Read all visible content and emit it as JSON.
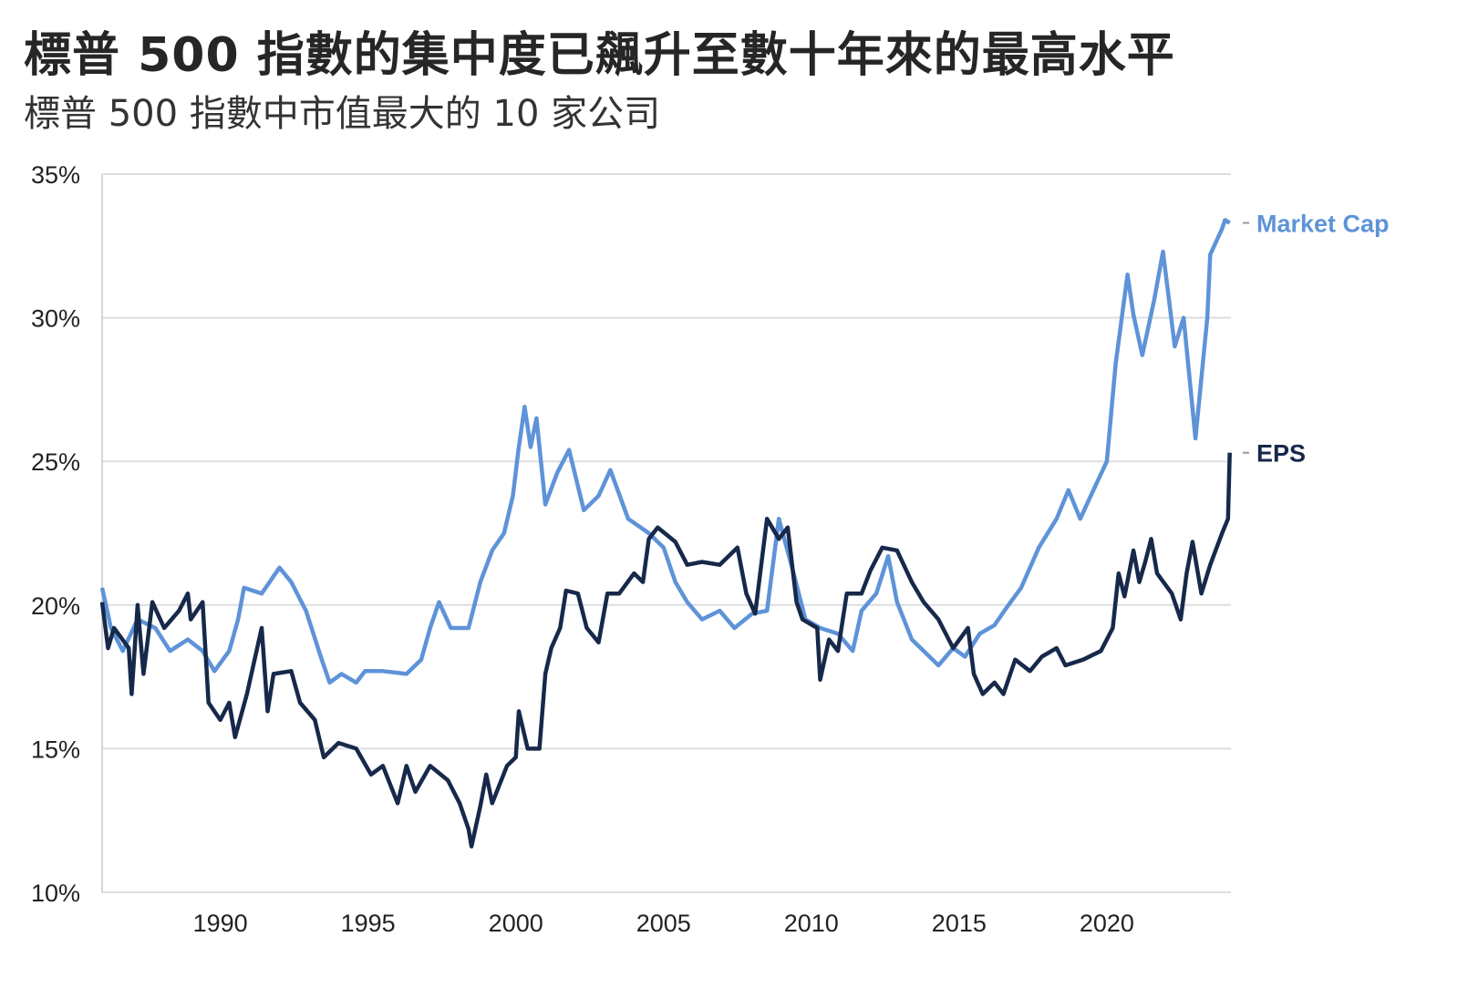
{
  "title": "標普 500 指數的集中度已飆升至數十年來的最高水平",
  "subtitle": "標普 500 指數中市值最大的 10 家公司",
  "chart_data": {
    "type": "line",
    "title": "標普 500 指數的集中度已飆升至數十年來的最高水平",
    "subtitle": "標普 500 指數中市值最大的 10 家公司",
    "xlabel": "",
    "ylabel": "",
    "xlim": [
      1986.0,
      2024.2
    ],
    "ylim": [
      10,
      35
    ],
    "x_ticks": [
      1990,
      1995,
      2000,
      2005,
      2010,
      2015,
      2020
    ],
    "x_tick_labels": [
      "1990",
      "1995",
      "2000",
      "2005",
      "2010",
      "2015",
      "2020"
    ],
    "y_ticks": [
      35,
      30,
      25,
      20,
      15,
      10
    ],
    "y_tick_labels": [
      "35%",
      "30%",
      "25%",
      "20%",
      "15%",
      "10%"
    ],
    "grid": "horizontal",
    "legend": "direct labels at line ends (right)",
    "series": [
      {
        "name": "Market Cap",
        "color": "#5e93d8",
        "x": [
          1986.0,
          1986.3,
          1986.7,
          1987.2,
          1987.8,
          1988.3,
          1988.9,
          1989.4,
          1989.8,
          1990.3,
          1990.6,
          1990.8,
          1991.4,
          1992.0,
          1992.4,
          1992.9,
          1993.4,
          1993.7,
          1994.1,
          1994.6,
          1994.9,
          1995.5,
          1996.3,
          1996.8,
          1997.1,
          1997.4,
          1997.8,
          1998.4,
          1998.8,
          1999.2,
          1999.6,
          1999.9,
          2000.1,
          2000.3,
          2000.5,
          2000.7,
          2001.0,
          2001.4,
          2001.8,
          2002.3,
          2002.8,
          2003.2,
          2003.8,
          2004.5,
          2005.0,
          2005.4,
          2005.8,
          2006.3,
          2006.9,
          2007.4,
          2008.0,
          2008.5,
          2008.7,
          2008.9,
          2009.4,
          2009.8,
          2010.3,
          2010.9,
          2011.4,
          2011.7,
          2012.2,
          2012.6,
          2012.9,
          2013.4,
          2013.8,
          2014.3,
          2014.8,
          2015.2,
          2015.7,
          2016.2,
          2016.6,
          2017.1,
          2017.7,
          2018.3,
          2018.7,
          2019.1,
          2019.5,
          2020.0,
          2020.3,
          2020.7,
          2020.9,
          2021.2,
          2021.6,
          2021.9,
          2022.3,
          2022.6,
          2023.0,
          2023.4,
          2023.5,
          2023.9,
          2024.0,
          2024.16
        ],
        "values": [
          20.6,
          19.2,
          18.4,
          19.5,
          19.2,
          18.4,
          18.8,
          18.4,
          17.7,
          18.4,
          19.5,
          20.6,
          20.4,
          21.3,
          20.8,
          19.8,
          18.2,
          17.3,
          17.6,
          17.3,
          17.7,
          17.7,
          17.6,
          18.1,
          19.2,
          20.1,
          19.2,
          19.2,
          20.8,
          21.9,
          22.5,
          23.8,
          25.5,
          26.9,
          25.5,
          26.5,
          23.5,
          24.6,
          25.4,
          23.3,
          23.8,
          24.7,
          23.0,
          22.5,
          22.0,
          20.8,
          20.1,
          19.5,
          19.8,
          19.2,
          19.7,
          19.8,
          21.4,
          23.0,
          21.1,
          19.5,
          19.2,
          19.0,
          18.4,
          19.8,
          20.4,
          21.7,
          20.1,
          18.8,
          18.4,
          17.9,
          18.5,
          18.2,
          19.0,
          19.3,
          19.9,
          20.6,
          22.0,
          23.0,
          24.0,
          23.0,
          23.9,
          25.0,
          28.4,
          31.5,
          30.1,
          28.7,
          30.6,
          32.3,
          29.0,
          30.0,
          25.8,
          30.0,
          32.2,
          33.1,
          33.4,
          33.3
        ]
      },
      {
        "name": "EPS",
        "color": "#17294a",
        "x": [
          1986.0,
          1986.2,
          1986.4,
          1986.9,
          1987.0,
          1987.2,
          1987.4,
          1987.7,
          1988.1,
          1988.6,
          1988.9,
          1989.0,
          1989.4,
          1989.6,
          1990.0,
          1990.3,
          1990.5,
          1990.9,
          1991.4,
          1991.6,
          1991.8,
          1992.4,
          1992.7,
          1993.2,
          1993.5,
          1994.0,
          1994.6,
          1995.1,
          1995.5,
          1996.0,
          1996.3,
          1996.6,
          1997.1,
          1997.7,
          1998.1,
          1998.4,
          1998.5,
          1998.8,
          1999.0,
          1999.2,
          1999.7,
          2000.0,
          2000.1,
          2000.4,
          2000.8,
          2001.0,
          2001.2,
          2001.5,
          2001.7,
          2002.1,
          2002.4,
          2002.8,
          2003.1,
          2003.5,
          2004.0,
          2004.3,
          2004.5,
          2004.8,
          2005.4,
          2005.8,
          2006.3,
          2006.9,
          2007.5,
          2007.8,
          2008.1,
          2008.5,
          2008.9,
          2009.2,
          2009.5,
          2009.7,
          2010.2,
          2010.3,
          2010.6,
          2010.9,
          2011.2,
          2011.7,
          2012.0,
          2012.4,
          2012.9,
          2013.4,
          2013.8,
          2014.3,
          2014.8,
          2015.3,
          2015.5,
          2015.8,
          2016.2,
          2016.5,
          2016.9,
          2017.4,
          2017.8,
          2018.3,
          2018.6,
          2019.2,
          2019.8,
          2020.2,
          2020.4,
          2020.6,
          2020.9,
          2021.1,
          2021.3,
          2021.5,
          2021.7,
          2022.2,
          2022.5,
          2022.7,
          2022.9,
          2023.2,
          2023.5,
          2023.9,
          2024.1,
          2024.16
        ],
        "values": [
          20.1,
          18.5,
          19.2,
          18.5,
          16.9,
          20.0,
          17.6,
          20.1,
          19.2,
          19.8,
          20.4,
          19.5,
          20.1,
          16.6,
          16.0,
          16.6,
          15.4,
          16.9,
          19.2,
          16.3,
          17.6,
          17.7,
          16.6,
          16.0,
          14.7,
          15.2,
          15.0,
          14.1,
          14.4,
          13.1,
          14.4,
          13.5,
          14.4,
          13.9,
          13.1,
          12.2,
          11.6,
          13.0,
          14.1,
          13.1,
          14.4,
          14.7,
          16.3,
          15.0,
          15.0,
          17.6,
          18.5,
          19.2,
          20.5,
          20.4,
          19.2,
          18.7,
          20.4,
          20.4,
          21.1,
          20.8,
          22.3,
          22.7,
          22.2,
          21.4,
          21.5,
          21.4,
          22.0,
          20.4,
          19.7,
          23.0,
          22.3,
          22.7,
          20.1,
          19.5,
          19.2,
          17.4,
          18.8,
          18.4,
          20.4,
          20.4,
          21.2,
          22.0,
          21.9,
          20.8,
          20.1,
          19.5,
          18.5,
          19.2,
          17.6,
          16.9,
          17.3,
          16.9,
          18.1,
          17.7,
          18.2,
          18.5,
          17.9,
          18.1,
          18.4,
          19.2,
          21.1,
          20.3,
          21.9,
          20.8,
          21.5,
          22.3,
          21.1,
          20.4,
          19.5,
          21.1,
          22.2,
          20.4,
          21.4,
          22.5,
          23.0,
          25.3
        ]
      }
    ]
  }
}
